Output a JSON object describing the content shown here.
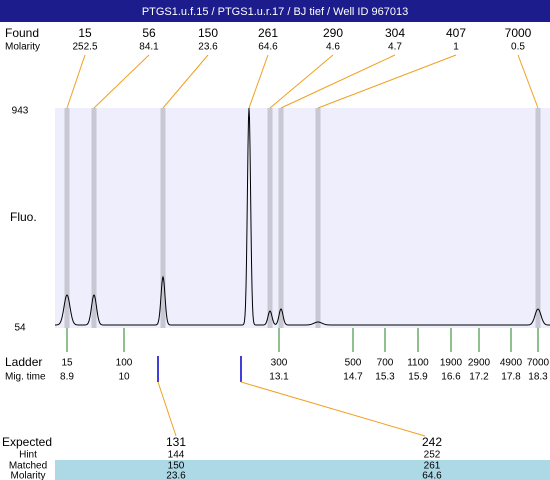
{
  "title_bar": "PTGS1.u.f.15 / PTGS1.u.r.17 / BJ tief / Well ID 967013",
  "found": {
    "label": "Found",
    "molarity_label": "Molarity",
    "sizes": [
      15,
      56,
      150,
      261,
      290,
      304,
      407,
      7000
    ],
    "molarity": [
      252.5,
      84.1,
      23.6,
      64.6,
      4.6,
      4.7,
      1,
      0.5
    ]
  },
  "axis": {
    "label": "Fluo.",
    "max": 943,
    "min": 54
  },
  "ladder": {
    "label": "Ladder",
    "mig_label": "Mig. time",
    "sizes": [
      15,
      100,
      300,
      500,
      700,
      1100,
      1900,
      2900,
      4900,
      7000
    ],
    "times": [
      8.9,
      10,
      13.1,
      14.7,
      15.3,
      15.9,
      16.6,
      17.2,
      17.8,
      18.3
    ]
  },
  "table": {
    "labels": [
      "Expected",
      "Hint",
      "Matched",
      "Molarity"
    ],
    "columns": [
      [
        131,
        144,
        150,
        23.6
      ],
      [
        242,
        252,
        261,
        64.6
      ]
    ]
  }
}
